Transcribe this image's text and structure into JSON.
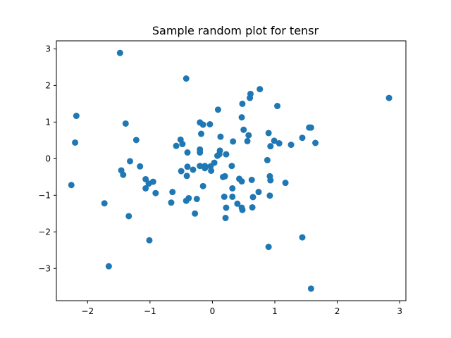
{
  "chart_data": {
    "type": "scatter",
    "title": "Sample random plot for tensr",
    "xlabel": "",
    "ylabel": "",
    "xlim": [
      -2.5,
      3.1
    ],
    "ylim": [
      -3.88,
      3.22
    ],
    "grid": false,
    "marker_color": "#1f77b4",
    "x_ticks": [
      {
        "value": -2,
        "label": "−2"
      },
      {
        "value": -1,
        "label": "−1"
      },
      {
        "value": 0,
        "label": "0"
      },
      {
        "value": 1,
        "label": "1"
      },
      {
        "value": 2,
        "label": "2"
      },
      {
        "value": 3,
        "label": "3"
      }
    ],
    "y_ticks": [
      {
        "value": -3,
        "label": "−3"
      },
      {
        "value": -2,
        "label": "−2"
      },
      {
        "value": -1,
        "label": "−1"
      },
      {
        "value": 0,
        "label": "0"
      },
      {
        "value": 1,
        "label": "1"
      },
      {
        "value": 2,
        "label": "2"
      },
      {
        "value": 3,
        "label": "3"
      }
    ],
    "points": [
      [
        -1.48,
        2.89
      ],
      [
        -0.42,
        2.19
      ],
      [
        2.83,
        1.66
      ],
      [
        -2.18,
        1.17
      ],
      [
        -2.2,
        0.44
      ],
      [
        -1.39,
        0.96
      ],
      [
        -1.22,
        0.51
      ],
      [
        -1.32,
        -0.07
      ],
      [
        -1.16,
        -0.21
      ],
      [
        -1.46,
        -0.32
      ],
      [
        -1.43,
        -0.44
      ],
      [
        -1.07,
        -0.56
      ],
      [
        -1.02,
        -0.68
      ],
      [
        -0.95,
        -0.63
      ],
      [
        -1.07,
        -0.81
      ],
      [
        -0.91,
        -0.94
      ],
      [
        -2.26,
        -0.72
      ],
      [
        -1.73,
        -1.22
      ],
      [
        -1.34,
        -1.57
      ],
      [
        -1.01,
        -2.23
      ],
      [
        -1.66,
        -2.94
      ],
      [
        -0.58,
        0.35
      ],
      [
        -0.51,
        0.52
      ],
      [
        -0.48,
        0.4
      ],
      [
        -0.4,
        0.17
      ],
      [
        -0.2,
        0.25
      ],
      [
        -0.2,
        0.17
      ],
      [
        -0.2,
        0.99
      ],
      [
        -0.15,
        0.93
      ],
      [
        -0.18,
        0.68
      ],
      [
        -0.04,
        0.94
      ],
      [
        0.09,
        1.34
      ],
      [
        -0.5,
        -0.34
      ],
      [
        -0.4,
        -0.22
      ],
      [
        -0.31,
        -0.3
      ],
      [
        -0.2,
        -0.2
      ],
      [
        -0.12,
        -0.26
      ],
      [
        -0.02,
        -0.33
      ],
      [
        -0.12,
        -0.2
      ],
      [
        -0.03,
        -0.21
      ],
      [
        0.03,
        -0.11
      ],
      [
        0.08,
        0.08
      ],
      [
        0.11,
        0.12
      ],
      [
        0.12,
        0.22
      ],
      [
        0.13,
        0.6
      ],
      [
        0.22,
        0.12
      ],
      [
        0.33,
        0.47
      ],
      [
        0.17,
        -0.5
      ],
      [
        0.2,
        -0.48
      ],
      [
        0.31,
        -0.2
      ],
      [
        0.43,
        -0.55
      ],
      [
        0.47,
        -0.62
      ],
      [
        -0.41,
        -0.47
      ],
      [
        -0.15,
        -0.75
      ],
      [
        -0.64,
        -0.91
      ],
      [
        -0.66,
        -1.2
      ],
      [
        -0.42,
        -1.15
      ],
      [
        -0.38,
        -1.08
      ],
      [
        -0.25,
        -1.1
      ],
      [
        -0.28,
        -1.5
      ],
      [
        0.19,
        -1.04
      ],
      [
        0.21,
        -1.62
      ],
      [
        0.22,
        -1.34
      ],
      [
        0.32,
        -0.81
      ],
      [
        0.32,
        -1.04
      ],
      [
        0.4,
        -1.23
      ],
      [
        0.47,
        -1.34
      ],
      [
        0.48,
        -1.4
      ],
      [
        0.48,
        1.5
      ],
      [
        0.47,
        1.13
      ],
      [
        0.5,
        0.79
      ],
      [
        0.56,
        0.48
      ],
      [
        0.58,
        0.64
      ],
      [
        0.6,
        1.66
      ],
      [
        0.61,
        1.77
      ],
      [
        0.76,
        1.9
      ],
      [
        0.63,
        -0.58
      ],
      [
        0.64,
        -1.33
      ],
      [
        0.65,
        -1.05
      ],
      [
        0.74,
        -0.91
      ],
      [
        0.88,
        -0.04
      ],
      [
        0.9,
        0.7
      ],
      [
        0.93,
        0.34
      ],
      [
        0.99,
        0.49
      ],
      [
        1.04,
        1.44
      ],
      [
        1.07,
        0.42
      ],
      [
        1.26,
        0.38
      ],
      [
        1.44,
        0.57
      ],
      [
        1.55,
        0.85
      ],
      [
        1.58,
        0.85
      ],
      [
        1.65,
        0.43
      ],
      [
        0.92,
        -0.48
      ],
      [
        0.93,
        -0.59
      ],
      [
        0.92,
        -1.01
      ],
      [
        1.17,
        -0.66
      ],
      [
        0.9,
        -2.41
      ],
      [
        1.44,
        -2.15
      ],
      [
        1.58,
        -3.55
      ]
    ]
  }
}
